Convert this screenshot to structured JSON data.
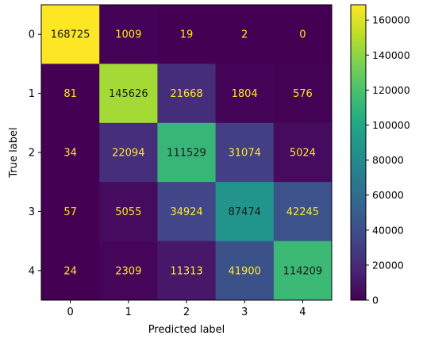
{
  "chart_data": {
    "type": "heatmap",
    "title": "",
    "xlabel": "Predicted label",
    "ylabel": "True label",
    "x_categories": [
      "0",
      "1",
      "2",
      "3",
      "4"
    ],
    "y_categories": [
      "0",
      "1",
      "2",
      "3",
      "4"
    ],
    "values": [
      [
        168725,
        1009,
        19,
        2,
        0
      ],
      [
        81,
        145626,
        21668,
        1804,
        576
      ],
      [
        34,
        22094,
        111529,
        31074,
        5024
      ],
      [
        57,
        5055,
        34924,
        87474,
        42245
      ],
      [
        24,
        2309,
        11313,
        41900,
        114209
      ]
    ],
    "colormap": "viridis",
    "colorbar": {
      "range": [
        0,
        168725
      ],
      "ticks": [
        0,
        20000,
        40000,
        60000,
        80000,
        100000,
        120000,
        140000,
        160000
      ],
      "tick_labels": [
        "0",
        "20000",
        "40000",
        "60000",
        "80000",
        "100000",
        "120000",
        "140000",
        "160000"
      ]
    },
    "label_colors": {
      "light": "#fde725",
      "dark": "#1a1a1a"
    },
    "grid": false
  }
}
